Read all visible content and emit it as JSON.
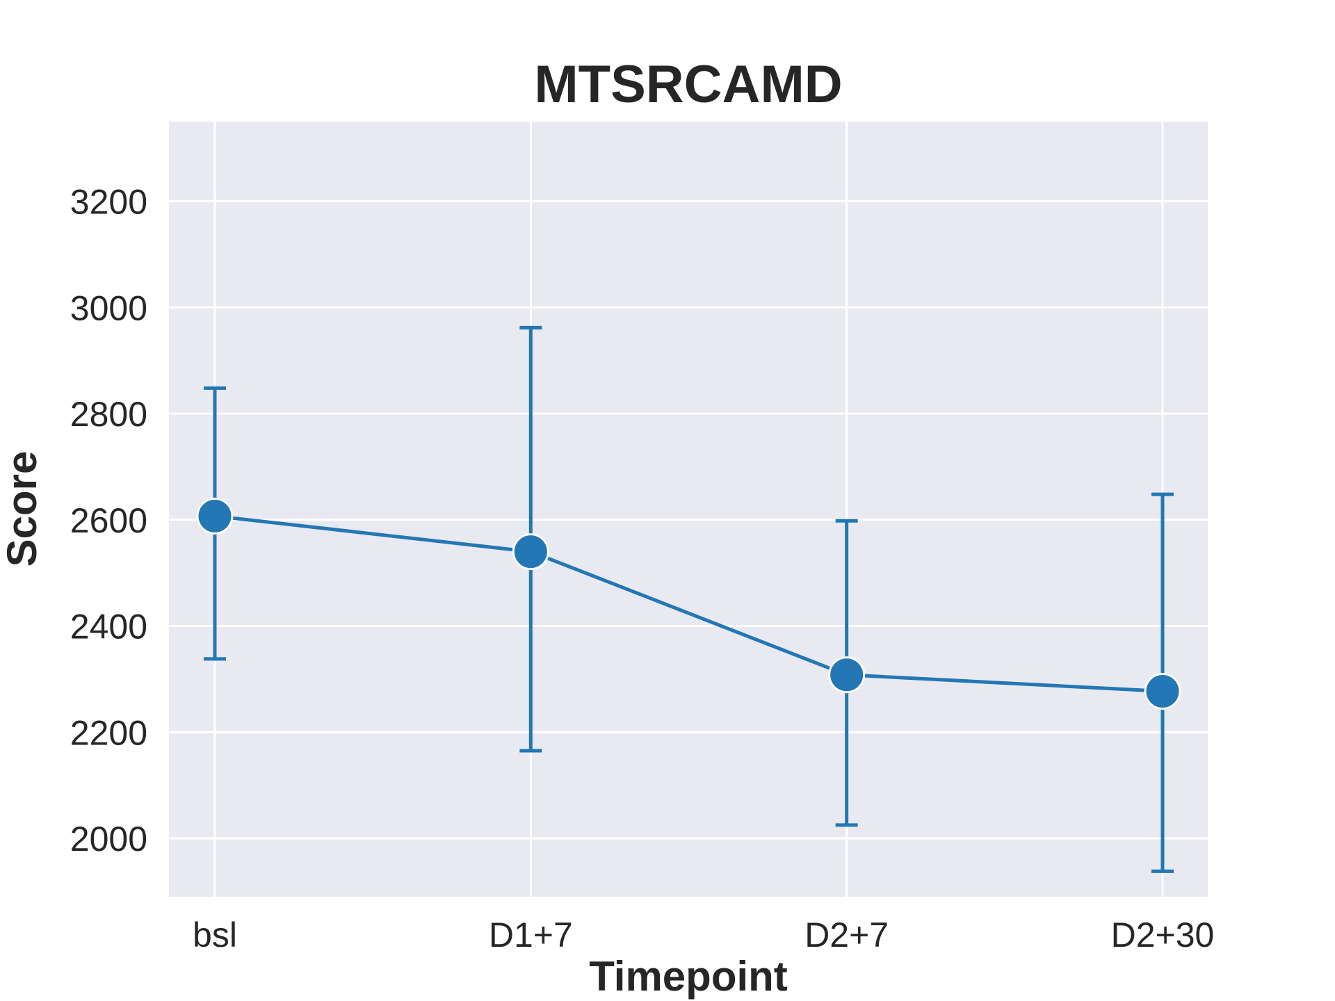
{
  "chart_data": {
    "type": "line",
    "title": "MTSRCAMD",
    "xlabel": "Timepoint",
    "ylabel": "Score",
    "categories": [
      "bsl",
      "D1+7",
      "D2+7",
      "D2+30"
    ],
    "series": [
      {
        "values": [
          2607,
          2540,
          2308,
          2277
        ],
        "error_low": [
          2338,
          2165,
          2025,
          1938
        ],
        "error_high": [
          2848,
          2962,
          2598,
          2648
        ]
      }
    ],
    "ylim": [
      1890,
      3350
    ],
    "yticks": [
      2000,
      2200,
      2400,
      2600,
      2800,
      3000,
      3200
    ],
    "grid": true,
    "colors": {
      "series": "#2277b4",
      "plot_background": "#e9e9f1",
      "grid": "#ffffff",
      "text": "#262626"
    }
  }
}
